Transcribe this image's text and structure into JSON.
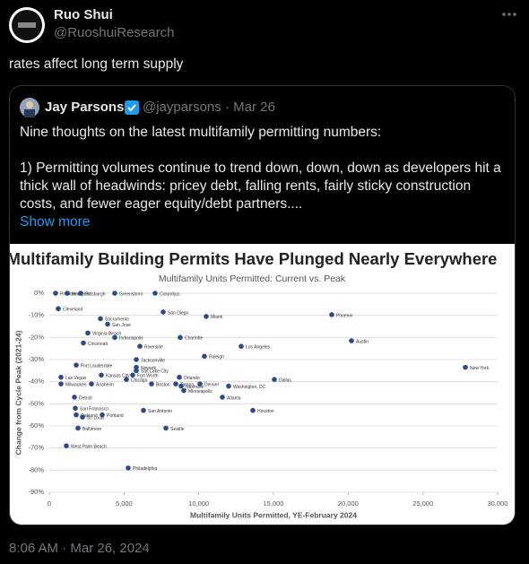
{
  "tweet": {
    "author": "Ruo Shui",
    "handle": "@RuoshuiResearch",
    "text": "rates affect long term supply",
    "timestamp": "8:06 AM · Mar 26, 2024"
  },
  "quote": {
    "author": "Jay Parsons",
    "handle": "@jayparsons",
    "date": "· Mar 26",
    "line1": "Nine thoughts on the latest multifamily permitting numbers:",
    "line2": "1) Permitting volumes continue to trend down, down, down as developers hit a thick wall of headwinds: pricey debt, falling rents, fairly sticky construction costs, and fewer eager equity/debt partners....",
    "show_more": "Show more"
  },
  "chart": {
    "type": "scatter",
    "title": "Multifamily Building Permits Have Plunged Nearly Everywhere",
    "subtitle": "Multifamily Units Permitted: Current vs. Peak",
    "x_label": "Multifamily Units Permitted, YE-February 2024",
    "y_label": "Change from Cycle Peak (2021-24)",
    "xlim": [
      0,
      30000
    ],
    "ylim": [
      -90,
      0
    ],
    "color": "#2e4a87",
    "grid": true,
    "xticks": [
      0,
      {
        "value": 5000,
        "label": "5,000"
      },
      {
        "value": 10000,
        "label": "10,000"
      },
      {
        "value": 15000,
        "label": "15,000"
      },
      {
        "value": 20000,
        "label": "20,000"
      },
      {
        "value": 25000,
        "label": "25,000"
      },
      {
        "value": 30000,
        "label": "30,000"
      }
    ],
    "yticks": [
      {
        "value": 0,
        "label": "0%"
      },
      {
        "value": -10,
        "label": "-10%"
      },
      {
        "value": -20,
        "label": "-20%"
      },
      {
        "value": -30,
        "label": "-30%"
      },
      {
        "value": -40,
        "label": "-40%"
      },
      {
        "value": -50,
        "label": "-50%"
      },
      {
        "value": -60,
        "label": "-60%"
      },
      {
        "value": -70,
        "label": "-70%"
      },
      {
        "value": -80,
        "label": "-80%"
      },
      {
        "value": -90,
        "label": "-90%"
      }
    ],
    "points": [
      {
        "label": "Providence",
        "x": 420,
        "y": 0
      },
      {
        "label": "Memphis",
        "x": 1200,
        "y": 0
      },
      {
        "label": "Pittsburgh",
        "x": 2100,
        "y": 0
      },
      {
        "label": "Greensboro",
        "x": 4380,
        "y": 0
      },
      {
        "label": "Columbus",
        "x": 7080,
        "y": 0
      },
      {
        "label": "Cleveland",
        "x": 600,
        "y": -7
      },
      {
        "label": "San Diego",
        "x": 7620,
        "y": -8.5
      },
      {
        "label": "Miami",
        "x": 10500,
        "y": -10.5
      },
      {
        "label": "Phoenix",
        "x": 18900,
        "y": -9.7
      },
      {
        "label": "Sacramento",
        "x": 3420,
        "y": -11.5
      },
      {
        "label": "San Jose",
        "x": 3900,
        "y": -14
      },
      {
        "label": "Virginia Beach",
        "x": 2580,
        "y": -18
      },
      {
        "label": "Indianapolis",
        "x": 4380,
        "y": -20
      },
      {
        "label": "Charlotte",
        "x": 8760,
        "y": -20
      },
      {
        "label": "Austin",
        "x": 20220,
        "y": -21.5
      },
      {
        "label": "Cincinnati",
        "x": 2280,
        "y": -22.5
      },
      {
        "label": "Riverside",
        "x": 6060,
        "y": -24
      },
      {
        "label": "Los Angeles",
        "x": 12840,
        "y": -24
      },
      {
        "label": "Jacksonville",
        "x": 5820,
        "y": -30
      },
      {
        "label": "Raleigh",
        "x": 10380,
        "y": -28.5
      },
      {
        "label": "Fort Lauderdale",
        "x": 1800,
        "y": -32.5
      },
      {
        "label": "Newark",
        "x": 5820,
        "y": -33.5
      },
      {
        "label": "Salt Lake City",
        "x": 5820,
        "y": -35
      },
      {
        "label": "New York",
        "x": 27840,
        "y": -33.5
      },
      {
        "label": "Las Vegas",
        "x": 780,
        "y": -38
      },
      {
        "label": "Kansas City",
        "x": 3480,
        "y": -37
      },
      {
        "label": "Fort Worth",
        "x": 5580,
        "y": -37
      },
      {
        "label": "Orlando",
        "x": 8700,
        "y": -38
      },
      {
        "label": "Dallas",
        "x": 15060,
        "y": -39
      },
      {
        "label": "Milwaukee",
        "x": 780,
        "y": -41
      },
      {
        "label": "Anaheim",
        "x": 2820,
        "y": -41
      },
      {
        "label": "Chicago",
        "x": 5160,
        "y": -39
      },
      {
        "label": "Boston",
        "x": 6840,
        "y": -41
      },
      {
        "label": "Denver",
        "x": 10080,
        "y": -41
      },
      {
        "label": "Washington, DC",
        "x": 12000,
        "y": -42
      },
      {
        "label": "Tampa",
        "x": 8460,
        "y": -41
      },
      {
        "label": "Nashville",
        "x": 8820,
        "y": -42
      },
      {
        "label": "Minneapolis",
        "x": 9000,
        "y": -44
      },
      {
        "label": "Atlanta",
        "x": 11580,
        "y": -47
      },
      {
        "label": "Detroit",
        "x": 1680,
        "y": -47
      },
      {
        "label": "San Francisco",
        "x": 1740,
        "y": -52
      },
      {
        "label": "San Antonio",
        "x": 6300,
        "y": -53
      },
      {
        "label": "Houston",
        "x": 13620,
        "y": -53
      },
      {
        "label": "Oakland",
        "x": 1800,
        "y": -55
      },
      {
        "label": "St. Louis",
        "x": 2220,
        "y": -56
      },
      {
        "label": "Portland",
        "x": 3540,
        "y": -55
      },
      {
        "label": "Baltimore",
        "x": 1920,
        "y": -61
      },
      {
        "label": "Seattle",
        "x": 7800,
        "y": -61
      },
      {
        "label": "West Palm Beach",
        "x": 1140,
        "y": -69
      },
      {
        "label": "Philadelphia",
        "x": 5280,
        "y": -79
      }
    ]
  }
}
